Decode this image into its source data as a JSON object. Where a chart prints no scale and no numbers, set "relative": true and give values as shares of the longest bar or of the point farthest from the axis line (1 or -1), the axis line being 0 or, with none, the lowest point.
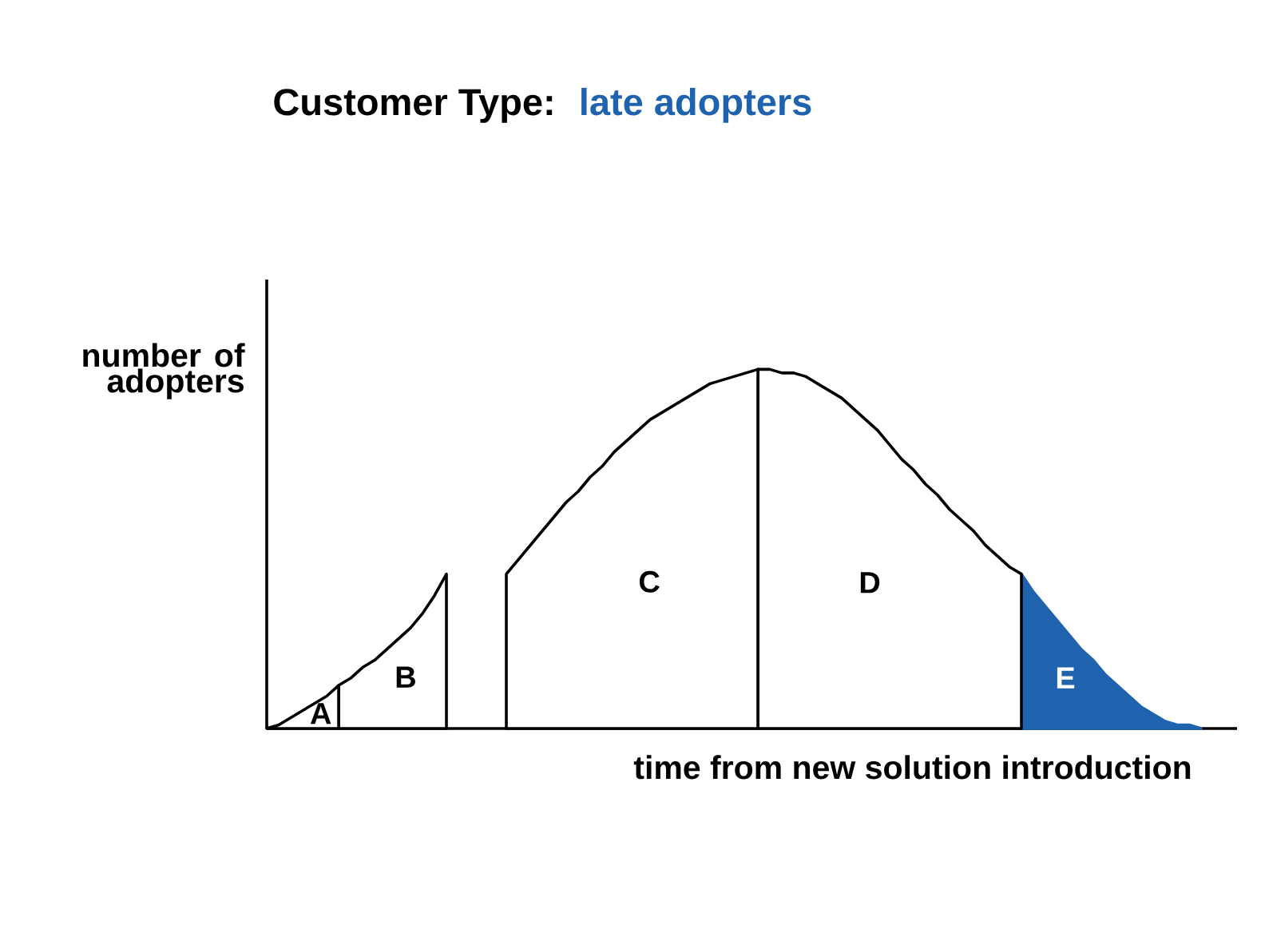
{
  "chart_data": {
    "type": "area",
    "title": "Customer Type:",
    "subtitle": "late adopters",
    "xlabel": "time from new solution introduction",
    "ylabel": "number of adopters",
    "relative": true,
    "categories": [
      null,
      null,
      null,
      null,
      null,
      null,
      null,
      null,
      null,
      null,
      null,
      null,
      null,
      null,
      null,
      null,
      null,
      null,
      null,
      null,
      null,
      null,
      null,
      null,
      null,
      null,
      null,
      null,
      null,
      null,
      null,
      null,
      null,
      null,
      null,
      null,
      null,
      null,
      null,
      null,
      null,
      null,
      null,
      null,
      null,
      null,
      null,
      null,
      null,
      null,
      null,
      null,
      null,
      null,
      null,
      null,
      null,
      null,
      null,
      null,
      null,
      null,
      null,
      null,
      null,
      null,
      null,
      null,
      null,
      null,
      null,
      null,
      null,
      null,
      null,
      null,
      null,
      null,
      null,
      null,
      null,
      null
    ],
    "series": [
      {
        "name": "A",
        "color": "#ffffff",
        "values": [
          0,
          0.01,
          0.03,
          0.05,
          0.07,
          0.09,
          0.12,
          null,
          null,
          null,
          null,
          null,
          null,
          null,
          null,
          null,
          null,
          null,
          null,
          null,
          null,
          null,
          null,
          null,
          null,
          null,
          null,
          null,
          null,
          null,
          null,
          null,
          null,
          null,
          null,
          null,
          null,
          null,
          null,
          null,
          null,
          null,
          null,
          null,
          null,
          null,
          null,
          null,
          null,
          null,
          null,
          null,
          null,
          null,
          null,
          null,
          null,
          null,
          null,
          null,
          null,
          null,
          null,
          null,
          null,
          null,
          null,
          null,
          null,
          null,
          null,
          null,
          null,
          null,
          null,
          null,
          null,
          null,
          null,
          null,
          null,
          null
        ]
      },
      {
        "name": "B",
        "color": "#ffffff",
        "values": [
          null,
          null,
          null,
          null,
          null,
          null,
          0.12,
          0.14,
          0.17,
          0.19,
          0.22,
          0.25,
          0.28,
          0.32,
          0.37,
          0.43,
          null,
          null,
          null,
          null,
          null,
          null,
          null,
          null,
          null,
          null,
          null,
          null,
          null,
          null,
          null,
          null,
          null,
          null,
          null,
          null,
          null,
          null,
          null,
          null,
          null,
          null,
          null,
          null,
          null,
          null,
          null,
          null,
          null,
          null,
          null,
          null,
          null,
          null,
          null,
          null,
          null,
          null,
          null,
          null,
          null,
          null,
          null,
          null,
          null,
          null,
          null,
          null,
          null,
          null,
          null,
          null,
          null,
          null,
          null,
          null,
          null,
          null,
          null,
          null,
          null,
          null
        ]
      },
      {
        "name": "C",
        "color": "#ffffff",
        "values": [
          null,
          null,
          null,
          null,
          null,
          null,
          null,
          null,
          null,
          null,
          null,
          null,
          null,
          null,
          null,
          null,
          null,
          null,
          null,
          null,
          0.43,
          0.47,
          0.51,
          0.55,
          0.59,
          0.63,
          0.66,
          0.7,
          0.73,
          0.77,
          0.8,
          0.83,
          0.86,
          0.88,
          0.9,
          0.92,
          0.94,
          0.96,
          0.97,
          0.98,
          0.99,
          1.0,
          null,
          null,
          null,
          null,
          null,
          null,
          null,
          null,
          null,
          null,
          null,
          null,
          null,
          null,
          null,
          null,
          null,
          null,
          null,
          null,
          null,
          null,
          null,
          null,
          null,
          null,
          null,
          null,
          null,
          null,
          null,
          null,
          null,
          null,
          null,
          null,
          null,
          null,
          null,
          null
        ]
      },
      {
        "name": "D",
        "color": "#ffffff",
        "values": [
          null,
          null,
          null,
          null,
          null,
          null,
          null,
          null,
          null,
          null,
          null,
          null,
          null,
          null,
          null,
          null,
          null,
          null,
          null,
          null,
          null,
          null,
          null,
          null,
          null,
          null,
          null,
          null,
          null,
          null,
          null,
          null,
          null,
          null,
          null,
          null,
          null,
          null,
          null,
          null,
          null,
          1.0,
          1.0,
          0.99,
          0.99,
          0.98,
          0.96,
          0.94,
          0.92,
          0.89,
          0.86,
          0.83,
          0.79,
          0.75,
          0.72,
          0.68,
          0.65,
          0.61,
          0.58,
          0.55,
          0.51,
          0.48,
          0.45,
          0.43,
          null,
          null,
          null,
          null,
          null,
          null,
          null,
          null,
          null,
          null,
          null,
          null,
          null,
          null,
          null,
          null,
          null,
          null
        ]
      },
      {
        "name": "E",
        "color": "#1f63af",
        "values": [
          null,
          null,
          null,
          null,
          null,
          null,
          null,
          null,
          null,
          null,
          null,
          null,
          null,
          null,
          null,
          null,
          null,
          null,
          null,
          null,
          null,
          null,
          null,
          null,
          null,
          null,
          null,
          null,
          null,
          null,
          null,
          null,
          null,
          null,
          null,
          null,
          null,
          null,
          null,
          null,
          null,
          null,
          null,
          null,
          null,
          null,
          null,
          null,
          null,
          null,
          null,
          null,
          null,
          null,
          null,
          null,
          null,
          null,
          null,
          null,
          null,
          null,
          null,
          0.43,
          0.38,
          0.34,
          0.3,
          0.26,
          0.22,
          0.19,
          0.15,
          0.12,
          0.09,
          0.06,
          0.04,
          0.02,
          0.01,
          0.01,
          0,
          null,
          null,
          null
        ]
      }
    ]
  }
}
